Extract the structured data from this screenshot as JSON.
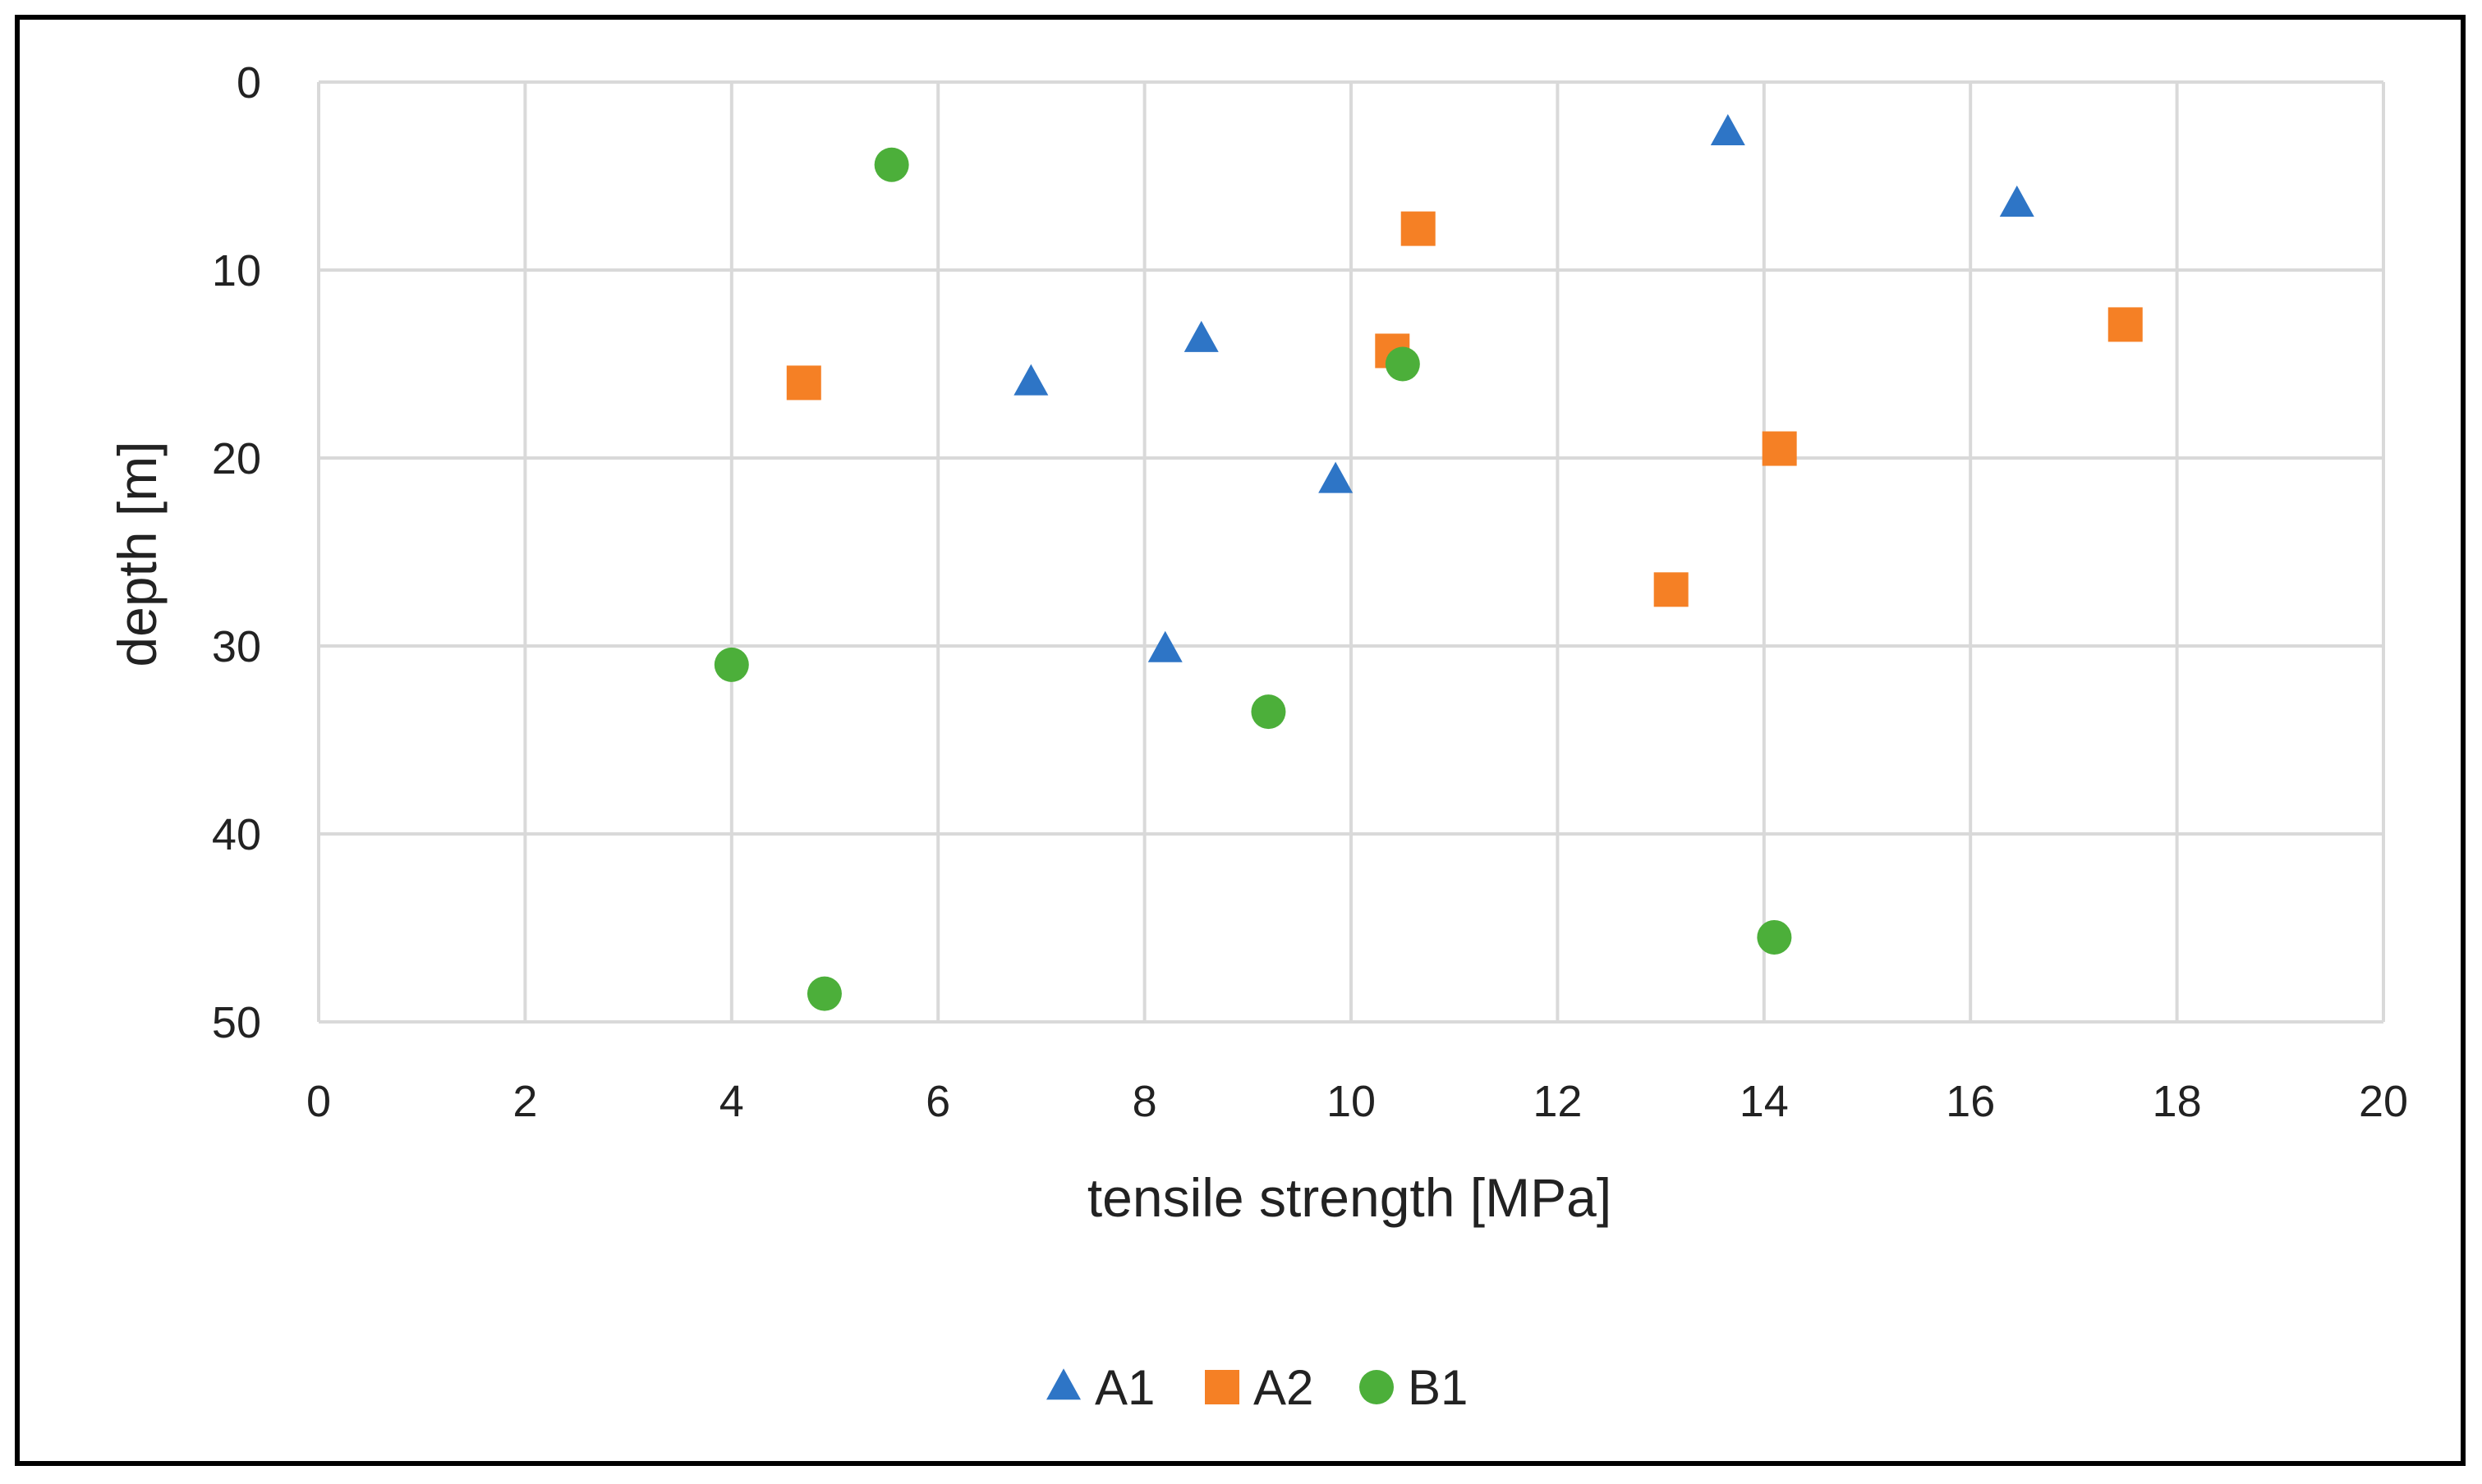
{
  "chart_data": {
    "type": "scatter",
    "title": "",
    "xlabel": "tensile strength [MPa]",
    "ylabel": "depth [m]",
    "xlim": [
      0,
      20
    ],
    "ylim": [
      0,
      50
    ],
    "y_reversed": true,
    "x_ticks": [
      "0",
      "2",
      "4",
      "6",
      "8",
      "10",
      "12",
      "14",
      "16",
      "18",
      "20"
    ],
    "y_ticks": [
      "0",
      "10",
      "20",
      "30",
      "40",
      "50"
    ],
    "grid": true,
    "legend_position": "bottom",
    "series": [
      {
        "name": "A1",
        "marker": "triangle",
        "color": "#2E75C6",
        "points": [
          {
            "x": 13.65,
            "y": 2.7
          },
          {
            "x": 16.45,
            "y": 6.5
          },
          {
            "x": 8.55,
            "y": 13.7
          },
          {
            "x": 6.9,
            "y": 16.0
          },
          {
            "x": 9.85,
            "y": 21.2
          },
          {
            "x": 8.2,
            "y": 30.2
          }
        ]
      },
      {
        "name": "A2",
        "marker": "square",
        "color": "#F58025",
        "points": [
          {
            "x": 10.65,
            "y": 7.8
          },
          {
            "x": 17.5,
            "y": 12.9
          },
          {
            "x": 10.4,
            "y": 14.3
          },
          {
            "x": 4.7,
            "y": 16.0
          },
          {
            "x": 14.15,
            "y": 19.5
          },
          {
            "x": 13.1,
            "y": 27.0
          }
        ]
      },
      {
        "name": "B1",
        "marker": "circle",
        "color": "#4CAF3A",
        "points": [
          {
            "x": 5.55,
            "y": 4.4
          },
          {
            "x": 10.5,
            "y": 15.0
          },
          {
            "x": 4.0,
            "y": 31.0
          },
          {
            "x": 9.2,
            "y": 33.5
          },
          {
            "x": 14.1,
            "y": 45.5
          },
          {
            "x": 4.9,
            "y": 48.5
          }
        ]
      }
    ]
  }
}
